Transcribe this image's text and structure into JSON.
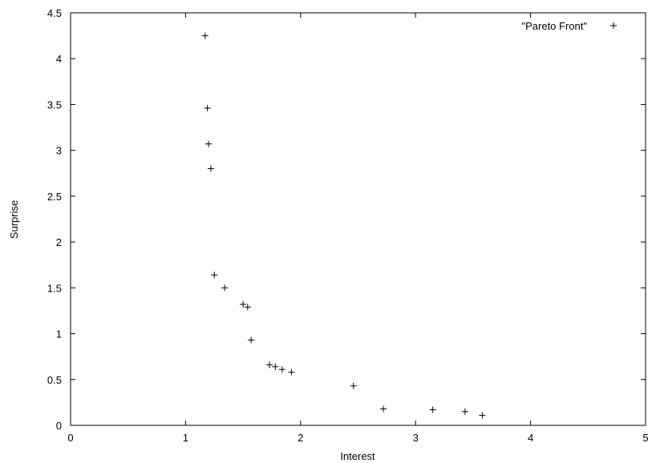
{
  "chart_data": {
    "type": "scatter",
    "title": "",
    "xlabel": "Interest",
    "ylabel": "Surprise",
    "xlim": [
      0,
      5
    ],
    "ylim": [
      0,
      4.5
    ],
    "xticks": [
      "0",
      "1",
      "2",
      "3",
      "4",
      "5"
    ],
    "yticks": [
      "0",
      "0.5",
      "1",
      "1.5",
      "2",
      "2.5",
      "3",
      "3.5",
      "4",
      "4.5"
    ],
    "grid": false,
    "legend_position": "top-right",
    "marker": "+",
    "colors": {
      "axis": "#000000",
      "points": "#000000",
      "background": "#ffffff"
    },
    "series": [
      {
        "name": "\"Pareto Front\"",
        "points": [
          {
            "x": 1.17,
            "y": 4.25
          },
          {
            "x": 1.19,
            "y": 3.46
          },
          {
            "x": 1.2,
            "y": 3.07
          },
          {
            "x": 1.22,
            "y": 2.8
          },
          {
            "x": 1.25,
            "y": 1.64
          },
          {
            "x": 1.34,
            "y": 1.5
          },
          {
            "x": 1.5,
            "y": 1.32
          },
          {
            "x": 1.54,
            "y": 1.29
          },
          {
            "x": 1.57,
            "y": 0.93
          },
          {
            "x": 1.73,
            "y": 0.66
          },
          {
            "x": 1.78,
            "y": 0.64
          },
          {
            "x": 1.84,
            "y": 0.61
          },
          {
            "x": 1.92,
            "y": 0.58
          },
          {
            "x": 2.46,
            "y": 0.43
          },
          {
            "x": 2.72,
            "y": 0.18
          },
          {
            "x": 3.15,
            "y": 0.17
          },
          {
            "x": 3.43,
            "y": 0.15
          },
          {
            "x": 3.58,
            "y": 0.11
          }
        ]
      }
    ]
  }
}
